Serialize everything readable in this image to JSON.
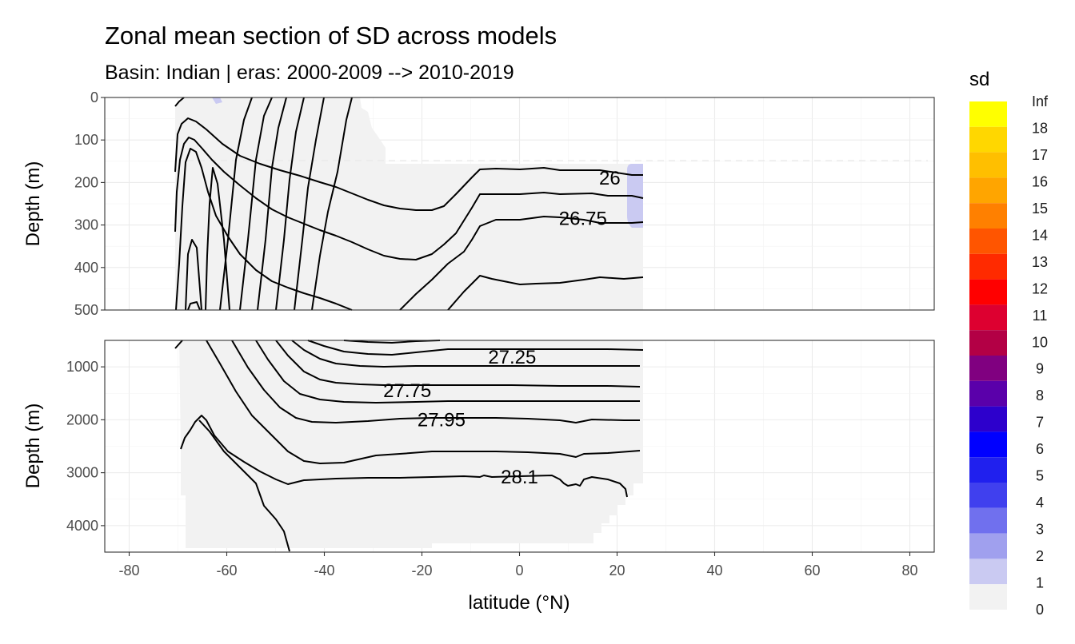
{
  "chart_data": {
    "type": "heatmap",
    "title": "Zonal mean section of SD across models",
    "subtitle": "Basin: Indian | eras: 2000-2009 --> 2010-2019",
    "xlabel": "latitude (°N)",
    "xlim": [
      -85,
      85
    ],
    "x_ticks": [
      -80,
      -60,
      -40,
      -20,
      0,
      20,
      40,
      60,
      80
    ],
    "x_tick_labels": [
      "-80",
      "-60",
      "-40",
      "-20",
      "0",
      "20",
      "40",
      "60",
      "80"
    ],
    "panels": [
      {
        "ylabel": "Depth (m)",
        "ylim": [
          500,
          0
        ],
        "y_ticks": [
          0,
          100,
          200,
          300,
          400,
          500
        ],
        "y_tick_labels": [
          "0",
          "100",
          "200",
          "300",
          "400",
          "500"
        ]
      },
      {
        "ylabel": "Depth (m)",
        "ylim": [
          4500,
          500
        ],
        "y_ticks": [
          1000,
          2000,
          3000,
          4000
        ],
        "y_tick_labels": [
          "1000",
          "2000",
          "3000",
          "4000"
        ]
      }
    ],
    "contour_labels": [
      {
        "text": "26",
        "lat": 18.5,
        "depth": 190,
        "panel": 0
      },
      {
        "text": "26.75",
        "lat": 13,
        "depth": 285,
        "panel": 0
      },
      {
        "text": "27.25",
        "lat": -1.5,
        "depth": 820,
        "panel": 1
      },
      {
        "text": "27.75",
        "lat": -23,
        "depth": 1450,
        "panel": 1
      },
      {
        "text": "27.95",
        "lat": -16,
        "depth": 2000,
        "panel": 1
      },
      {
        "text": "28.1",
        "lat": 0,
        "depth": 3080,
        "panel": 1
      }
    ],
    "legend": {
      "title": "sd",
      "position": "right",
      "labels": [
        "Inf",
        "18",
        "17",
        "16",
        "15",
        "14",
        "13",
        "12",
        "11",
        "10",
        "9",
        "8",
        "7",
        "6",
        "5",
        "4",
        "3",
        "2",
        "1",
        "0"
      ],
      "colors": [
        "#ffff00",
        "#ffd700",
        "#ffbf00",
        "#ffa500",
        "#ff8000",
        "#ff5500",
        "#ff2a00",
        "#ff0000",
        "#dd0030",
        "#b30045",
        "#800080",
        "#5a00aa",
        "#2d00cc",
        "#0000ff",
        "#2020ee",
        "#4040ee",
        "#7070ee",
        "#a0a0ee",
        "#cacaf2",
        "#f2f2f2"
      ]
    },
    "grid": true,
    "fill_colors": {
      "sd_0_1": "#f2f2f2",
      "sd_1_2": "#cacaf2"
    }
  }
}
